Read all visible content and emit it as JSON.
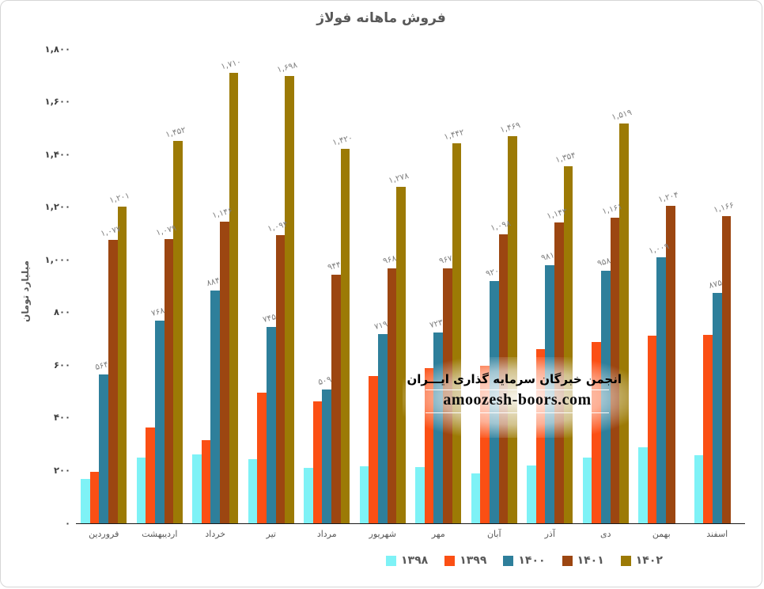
{
  "chart_data": {
    "type": "bar",
    "title": "فروش ماهانه فولاژ",
    "ylabel": "میلیارد تومان",
    "xlabel": "",
    "ylim": [
      0,
      1800
    ],
    "ytick_step": 200,
    "ytick_labels": [
      "۰",
      "۲۰۰",
      "۴۰۰",
      "۶۰۰",
      "۸۰۰",
      "۱,۰۰۰",
      "۱,۲۰۰",
      "۱,۴۰۰",
      "۱,۶۰۰",
      "۱,۸۰۰"
    ],
    "grid": false,
    "legend_position": "bottom",
    "categories": [
      "فروردین",
      "اردیبهشت",
      "خرداد",
      "تیر",
      "مرداد",
      "شهریور",
      "مهر",
      "آبان",
      "آذر",
      "دی",
      "بهمن",
      "اسفند"
    ],
    "series": [
      {
        "name": "۱۳۹۸",
        "color": "#7ef2f6",
        "values": [
          168,
          248,
          262,
          244,
          210,
          216,
          212,
          188,
          220,
          250,
          288,
          258
        ],
        "labels": [
          null,
          null,
          null,
          null,
          null,
          null,
          null,
          null,
          null,
          null,
          null,
          null
        ]
      },
      {
        "name": "۱۳۹۹",
        "color": "#fb4f14",
        "values": [
          194,
          363,
          315,
          495,
          462,
          558,
          588,
          598,
          662,
          688,
          712,
          716
        ],
        "labels": [
          null,
          null,
          null,
          null,
          null,
          null,
          null,
          null,
          null,
          null,
          null,
          null
        ]
      },
      {
        "name": "۱۴۰۰",
        "color": "#2e7f9b",
        "values": [
          564,
          768,
          884,
          745,
          509,
          719,
          723,
          920,
          981,
          958,
          1009,
          875
        ],
        "labels": [
          "۵۶۴",
          "۷۶۸",
          "۸۸۴",
          "۷۴۵",
          "۵۰۹",
          "۷۱۹",
          "۷۲۳",
          "۹۲۰",
          "۹۸۱",
          "۹۵۸",
          "۱,۰۰۹",
          "۸۷۵"
        ]
      },
      {
        "name": "۱۴۰۱",
        "color": "#9c4611",
        "values": [
          1077,
          1079,
          1146,
          1094,
          944,
          968,
          967,
          1098,
          1143,
          1161,
          1204,
          1166
        ],
        "labels": [
          "۱,۰۷۷",
          "۱,۰۷۹",
          "۱,۱۴۶",
          "۱,۰۹۴",
          "۹۴۴",
          "۹۶۸",
          "۹۶۷",
          "۱,۰۹۸",
          "۱,۱۴۳",
          "۱,۱۶۱",
          "۱,۲۰۴",
          "۱,۱۶۶"
        ]
      },
      {
        "name": "۱۴۰۲",
        "color": "#9c7a05",
        "values": [
          1201,
          1452,
          1710,
          1698,
          1420,
          1278,
          1442,
          1469,
          1354,
          1519,
          null,
          null
        ],
        "labels": [
          "۱,۲۰۱",
          "۱,۴۵۲",
          "۱,۷۱۰",
          "۱,۶۹۸",
          "۱,۴۲۰",
          "۱,۲۷۸",
          "۱,۴۴۲",
          "۱,۴۶۹",
          "۱,۳۵۴",
          "۱,۵۱۹",
          null,
          null
        ]
      }
    ]
  },
  "watermark": {
    "line1": "انجمن خبرگان سرمایه گذاری ایـــران",
    "line2": "amoozesh-boors.com"
  },
  "colors": {
    "title_text": "#595959",
    "axis_text": "#404040",
    "data_label_text": "#7f7f7f",
    "axis_line": "#1a1a1a",
    "background": "#ffffff"
  }
}
